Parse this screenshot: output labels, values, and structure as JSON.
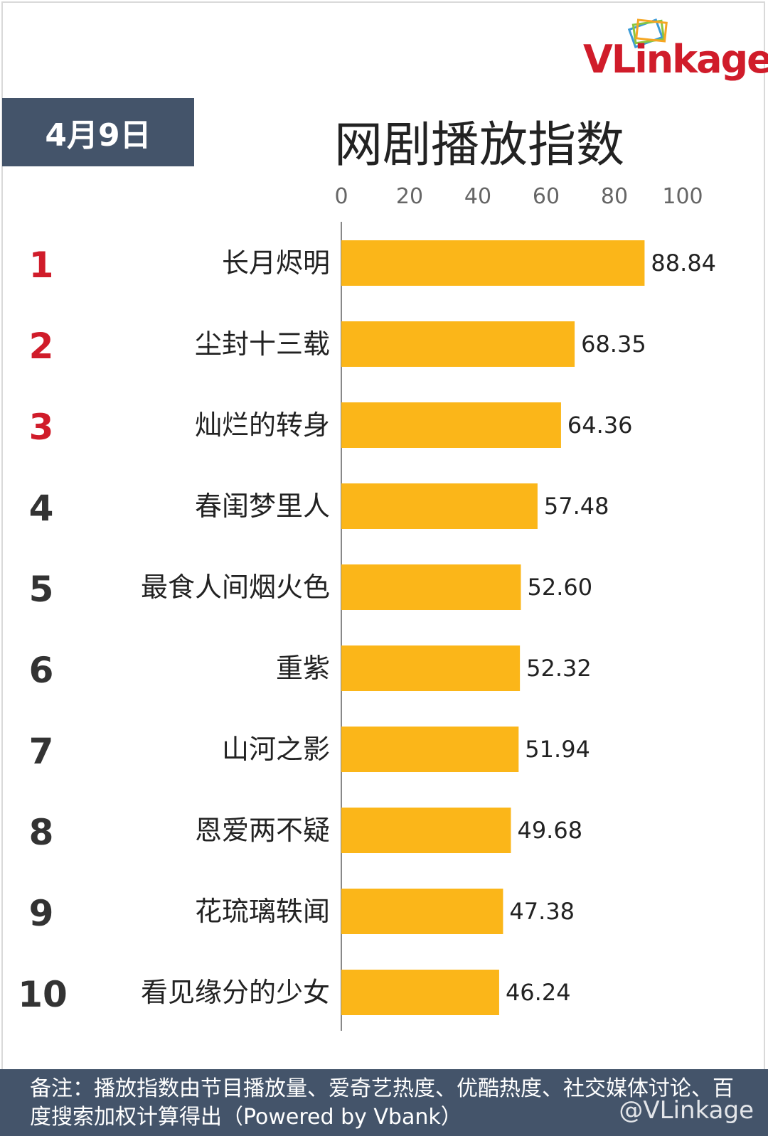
{
  "brand": {
    "logo": "VLinkage",
    "logo_icon": "stacked-cards-icon"
  },
  "date_label": "4月9日",
  "title": "网剧播放指数",
  "colors": {
    "bar": "#fbb619",
    "header_bg": "#44546a",
    "top_rank": "#d01c2a",
    "rank": "#333333"
  },
  "chart_data": {
    "type": "bar",
    "orientation": "horizontal",
    "title": "网剧播放指数",
    "xlim": [
      0,
      100
    ],
    "x_ticks": [
      "0",
      "20",
      "40",
      "60",
      "80",
      "100"
    ],
    "grid": false,
    "ranks": [
      "1",
      "2",
      "3",
      "4",
      "5",
      "6",
      "7",
      "8",
      "9",
      "10"
    ],
    "categories": [
      "长月烬明",
      "尘封十三载",
      "灿烂的转身",
      "春闺梦里人",
      "最食人间烟火色",
      "重紫",
      "山河之影",
      "恩爱两不疑",
      "花琉璃轶闻",
      "看见缘分的少女"
    ],
    "values": [
      88.84,
      68.35,
      64.36,
      57.48,
      52.6,
      52.32,
      51.94,
      49.68,
      47.38,
      46.24
    ],
    "value_labels": [
      "88.84",
      "68.35",
      "64.36",
      "57.48",
      "52.60",
      "52.32",
      "51.94",
      "49.68",
      "47.38",
      "46.24"
    ]
  },
  "footer": {
    "note": "备注：播放指数由节目播放量、爱奇艺热度、优酷热度、社交媒体讨论、百度搜索加权计算得出（Powered by Vbank）",
    "watermark": "@VLinkage"
  }
}
